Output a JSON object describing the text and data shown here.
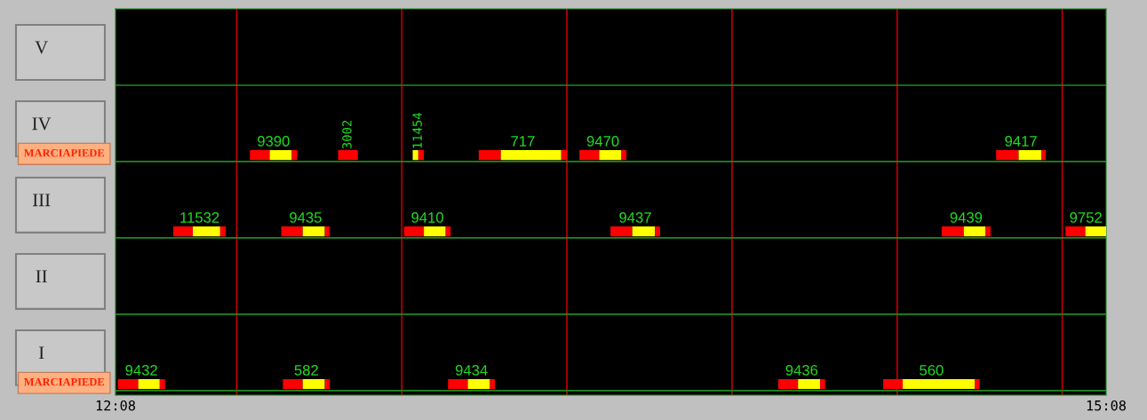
{
  "chart_data": {
    "type": "bar",
    "orientation": "horizontal",
    "categories": [
      "V",
      "IV",
      "III",
      "II",
      "I"
    ],
    "xlim": [
      12.133,
      15.133
    ],
    "xticks": [
      {
        "value": 12.133,
        "label": "12:08"
      },
      {
        "value": 15.133,
        "label": "15:08"
      }
    ],
    "ref_lines": [
      {
        "axis": "x",
        "value": 12.5,
        "color": "#c00000"
      },
      {
        "axis": "x",
        "value": 13,
        "color": "#c00000"
      },
      {
        "axis": "x",
        "value": 13.5,
        "color": "#c00000"
      },
      {
        "axis": "x",
        "value": 14,
        "color": "#c00000"
      },
      {
        "axis": "x",
        "value": 14.5,
        "color": "#c00000"
      },
      {
        "axis": "x",
        "value": 15,
        "color": "#c00000"
      },
      {
        "axis": "y",
        "value": "V",
        "color": "#1f8a1f"
      },
      {
        "axis": "y",
        "value": "IV",
        "color": "#1f8a1f"
      },
      {
        "axis": "y",
        "value": "III",
        "color": "#1f8a1f"
      },
      {
        "axis": "y",
        "value": "II",
        "color": "#1f8a1f"
      },
      {
        "axis": "y",
        "value": "I",
        "color": "#1f8a1f"
      }
    ],
    "series": [
      {
        "color": "#ff0000",
        "values": [
          null,
          0.06,
          null,
          null,
          null
        ],
        "base": [
          null,
          12.54,
          null,
          null,
          null
        ]
      },
      {
        "color": "#ffff00",
        "values": [
          null,
          0.067,
          null,
          null,
          null
        ],
        "base": [
          null,
          12.6,
          null,
          null,
          null
        ]
      },
      {
        "color": "#ff0000",
        "values": [
          null,
          0.016,
          null,
          null,
          null
        ],
        "base": [
          null,
          12.667,
          null,
          null,
          null
        ]
      },
      {
        "color": "#ff0000",
        "values": [
          null,
          0.06,
          null,
          null,
          null
        ],
        "base": [
          null,
          12.807,
          null,
          null,
          null
        ]
      },
      {
        "color": "#ffff00",
        "values": [
          null,
          0.017,
          null,
          null,
          null
        ],
        "base": [
          null,
          13.033,
          null,
          null,
          null
        ]
      },
      {
        "color": "#ff0000",
        "values": [
          null,
          0.017,
          null,
          null,
          null
        ],
        "base": [
          null,
          13.05,
          null,
          null,
          null
        ]
      },
      {
        "color": "#ff0000",
        "values": [
          null,
          0.067,
          null,
          null,
          null
        ],
        "base": [
          null,
          13.233,
          null,
          null,
          null
        ]
      },
      {
        "color": "#ffff00",
        "values": [
          null,
          0.183,
          null,
          null,
          null
        ],
        "base": [
          null,
          13.3,
          null,
          null,
          null
        ]
      },
      {
        "color": "#ff0000",
        "values": [
          null,
          0.017,
          null,
          null,
          null
        ],
        "base": [
          null,
          13.483,
          null,
          null,
          null
        ]
      },
      {
        "color": "#ff0000",
        "values": [
          null,
          0.06,
          null,
          null,
          null
        ],
        "base": [
          null,
          13.538,
          null,
          null,
          null
        ]
      },
      {
        "color": "#ffff00",
        "values": [
          null,
          0.067,
          null,
          null,
          null
        ],
        "base": [
          null,
          13.598,
          null,
          null,
          null
        ]
      },
      {
        "color": "#ff0000",
        "values": [
          null,
          0.015,
          null,
          null,
          null
        ],
        "base": [
          null,
          13.665,
          null,
          null,
          null
        ]
      },
      {
        "color": "#ff0000",
        "values": [
          null,
          0.068,
          null,
          null,
          null
        ],
        "base": [
          null,
          14.8,
          null,
          null,
          null
        ]
      },
      {
        "color": "#ffff00",
        "values": [
          null,
          0.069,
          null,
          null,
          null
        ],
        "base": [
          null,
          14.868,
          null,
          null,
          null
        ]
      },
      {
        "color": "#ff0000",
        "values": [
          null,
          0.013,
          null,
          null,
          null
        ],
        "base": [
          null,
          14.937,
          null,
          null,
          null
        ]
      },
      {
        "color": "#ff0000",
        "values": [
          null,
          null,
          0.059,
          null,
          null
        ],
        "base": [
          null,
          null,
          12.308,
          null,
          null
        ]
      },
      {
        "color": "#ffff00",
        "values": [
          null,
          null,
          0.083,
          null,
          null
        ],
        "base": [
          null,
          null,
          12.367,
          null,
          null
        ]
      },
      {
        "color": "#ff0000",
        "values": [
          null,
          null,
          0.017,
          null,
          null
        ],
        "base": [
          null,
          null,
          12.45,
          null,
          null
        ]
      },
      {
        "color": "#ff0000",
        "values": [
          null,
          null,
          0.065,
          null,
          null
        ],
        "base": [
          null,
          null,
          12.635,
          null,
          null
        ]
      },
      {
        "color": "#ffff00",
        "values": [
          null,
          null,
          0.067,
          null,
          null
        ],
        "base": [
          null,
          null,
          12.7,
          null,
          null
        ]
      },
      {
        "color": "#ff0000",
        "values": [
          null,
          null,
          0.015,
          null,
          null
        ],
        "base": [
          null,
          null,
          12.767,
          null,
          null
        ]
      },
      {
        "color": "#ff0000",
        "values": [
          null,
          null,
          0.06,
          null,
          null
        ],
        "base": [
          null,
          null,
          13.007,
          null,
          null
        ]
      },
      {
        "color": "#ffff00",
        "values": [
          null,
          null,
          0.066,
          null,
          null
        ],
        "base": [
          null,
          null,
          13.067,
          null,
          null
        ]
      },
      {
        "color": "#ff0000",
        "values": [
          null,
          null,
          0.015,
          null,
          null
        ],
        "base": [
          null,
          null,
          13.133,
          null,
          null
        ]
      },
      {
        "color": "#ff0000",
        "values": [
          null,
          null,
          0.066,
          null,
          null
        ],
        "base": [
          null,
          null,
          13.632,
          null,
          null
        ]
      },
      {
        "color": "#ffff00",
        "values": [
          null,
          null,
          0.069,
          null,
          null
        ],
        "base": [
          null,
          null,
          13.698,
          null,
          null
        ]
      },
      {
        "color": "#ff0000",
        "values": [
          null,
          null,
          0.015,
          null,
          null
        ],
        "base": [
          null,
          null,
          13.767,
          null,
          null
        ]
      },
      {
        "color": "#ff0000",
        "values": [
          null,
          null,
          0.067,
          null,
          null
        ],
        "base": [
          null,
          null,
          14.635,
          null,
          null
        ]
      },
      {
        "color": "#ffff00",
        "values": [
          null,
          null,
          0.066,
          null,
          null
        ],
        "base": [
          null,
          null,
          14.702,
          null,
          null
        ]
      },
      {
        "color": "#ff0000",
        "values": [
          null,
          null,
          0.015,
          null,
          null
        ],
        "base": [
          null,
          null,
          14.768,
          null,
          null
        ]
      },
      {
        "color": "#ff0000",
        "values": [
          null,
          null,
          0.06,
          null,
          null
        ],
        "base": [
          null,
          null,
          15.01,
          null,
          null
        ]
      },
      {
        "color": "#ffff00",
        "values": [
          null,
          null,
          0.063,
          null,
          null
        ],
        "base": [
          null,
          null,
          15.07,
          null,
          null
        ]
      },
      {
        "color": "#ff0000",
        "values": [
          null,
          null,
          null,
          null,
          0.062
        ],
        "base": [
          null,
          null,
          null,
          null,
          12.14
        ]
      },
      {
        "color": "#ffff00",
        "values": [
          null,
          null,
          null,
          null,
          0.065
        ],
        "base": [
          null,
          null,
          null,
          null,
          12.202
        ]
      },
      {
        "color": "#ff0000",
        "values": [
          null,
          null,
          null,
          null,
          0.016
        ],
        "base": [
          null,
          null,
          null,
          null,
          12.267
        ]
      },
      {
        "color": "#ff0000",
        "values": [
          null,
          null,
          null,
          null,
          0.06
        ],
        "base": [
          null,
          null,
          null,
          null,
          12.64
        ]
      },
      {
        "color": "#ffff00",
        "values": [
          null,
          null,
          null,
          null,
          0.067
        ],
        "base": [
          null,
          null,
          null,
          null,
          12.7
        ]
      },
      {
        "color": "#ff0000",
        "values": [
          null,
          null,
          null,
          null,
          0.015
        ],
        "base": [
          null,
          null,
          null,
          null,
          12.767
        ]
      },
      {
        "color": "#ff0000",
        "values": [
          null,
          null,
          null,
          null,
          0.06
        ],
        "base": [
          null,
          null,
          null,
          null,
          13.14
        ]
      },
      {
        "color": "#ffff00",
        "values": [
          null,
          null,
          null,
          null,
          0.067
        ],
        "base": [
          null,
          null,
          null,
          null,
          13.2
        ]
      },
      {
        "color": "#ff0000",
        "values": [
          null,
          null,
          null,
          null,
          0.015
        ],
        "base": [
          null,
          null,
          null,
          null,
          13.267
        ]
      },
      {
        "color": "#ff0000",
        "values": [
          null,
          null,
          null,
          null,
          0.06
        ],
        "base": [
          null,
          null,
          null,
          null,
          14.14
        ]
      },
      {
        "color": "#ffff00",
        "values": [
          null,
          null,
          null,
          null,
          0.067
        ],
        "base": [
          null,
          null,
          null,
          null,
          14.2
        ]
      },
      {
        "color": "#ff0000",
        "values": [
          null,
          null,
          null,
          null,
          0.015
        ],
        "base": [
          null,
          null,
          null,
          null,
          14.267
        ]
      },
      {
        "color": "#ff0000",
        "values": [
          null,
          null,
          null,
          null,
          0.059
        ],
        "base": [
          null,
          null,
          null,
          null,
          14.458
        ]
      },
      {
        "color": "#ffff00",
        "values": [
          null,
          null,
          null,
          null,
          0.218
        ],
        "base": [
          null,
          null,
          null,
          null,
          14.517
        ]
      },
      {
        "color": "#ff0000",
        "values": [
          null,
          null,
          null,
          null,
          0.015
        ],
        "base": [
          null,
          null,
          null,
          null,
          14.735
        ]
      }
    ],
    "annotations": [
      {
        "text": "9390",
        "x": 12.54,
        "y": "IV"
      },
      {
        "text": "3002",
        "x": 12.807,
        "y": "IV"
      },
      {
        "text": "11454",
        "x": 13.033,
        "y": "IV"
      },
      {
        "text": "717",
        "x": 13.233,
        "y": "IV"
      },
      {
        "text": "9470",
        "x": 13.538,
        "y": "IV"
      },
      {
        "text": "9417",
        "x": 14.8,
        "y": "IV"
      },
      {
        "text": "11532",
        "x": 12.308,
        "y": "III"
      },
      {
        "text": "9435",
        "x": 12.635,
        "y": "III"
      },
      {
        "text": "9410",
        "x": 13.007,
        "y": "III"
      },
      {
        "text": "9437",
        "x": 13.632,
        "y": "III"
      },
      {
        "text": "9439",
        "x": 14.635,
        "y": "III"
      },
      {
        "text": "9752",
        "x": 15.01,
        "y": "III"
      },
      {
        "text": "9432",
        "x": 12.14,
        "y": "I"
      },
      {
        "text": "582",
        "x": 12.64,
        "y": "I"
      },
      {
        "text": "9434",
        "x": 13.14,
        "y": "I"
      },
      {
        "text": "9436",
        "x": 14.14,
        "y": "I"
      },
      {
        "text": "560",
        "x": 14.458,
        "y": "I"
      },
      "MARCIAPIEDE",
      "MARCIAPIEDE"
    ]
  }
}
